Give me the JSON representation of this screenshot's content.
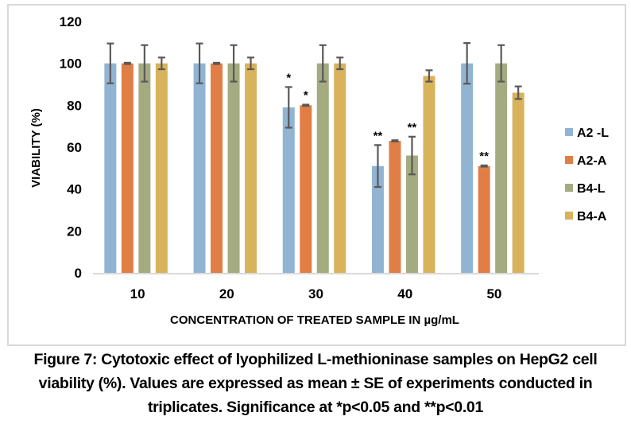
{
  "chart_data": {
    "type": "bar",
    "title": "",
    "xlabel": "CONCENTRATION OF TREATED SAMPLE IN µg/mL",
    "ylabel": "VIABILITY  (%)",
    "ylim": [
      0,
      120
    ],
    "yticks": [
      0,
      20,
      40,
      60,
      80,
      100,
      120
    ],
    "grid": false,
    "legend_position": "right",
    "categories": [
      "10",
      "20",
      "30",
      "40",
      "50"
    ],
    "series": [
      {
        "name": "A2 -L",
        "color": "#92b4d3",
        "values": [
          100,
          100,
          79,
          51,
          100
        ],
        "errors": [
          9.5,
          9.5,
          9.7,
          10,
          9.7
        ],
        "significance": [
          "",
          "",
          "*",
          "**",
          ""
        ]
      },
      {
        "name": "A2-A",
        "color": "#e07e45",
        "values": [
          100,
          100,
          80,
          63,
          51
        ],
        "errors": [
          0.3,
          0.3,
          0.3,
          0.3,
          0.3
        ],
        "significance": [
          "",
          "",
          "*",
          "",
          "**"
        ]
      },
      {
        "name": "B4-L",
        "color": "#a5ab80",
        "values": [
          100,
          100,
          100,
          56,
          100
        ],
        "errors": [
          8.7,
          8.7,
          8.7,
          9,
          8.7
        ],
        "significance": [
          "",
          "",
          "",
          "**",
          ""
        ]
      },
      {
        "name": "B4-A",
        "color": "#d9b25c",
        "values": [
          100,
          100,
          100,
          94,
          86
        ],
        "errors": [
          2.8,
          2.8,
          2.8,
          2.7,
          3
        ],
        "significance": [
          "",
          "",
          "",
          "",
          ""
        ]
      }
    ],
    "error_bar_color": "#595959",
    "axis_color": "#d9d9d9"
  },
  "caption": {
    "lines": [
      "Figure 7: Cytotoxic effect of lyophilized L-methioninase samples on HepG2 cell",
      "viability (%). Values are expressed as mean ± SE of experiments conducted in",
      "triplicates. Significance at *p<0.05 and **p<0.01"
    ]
  }
}
